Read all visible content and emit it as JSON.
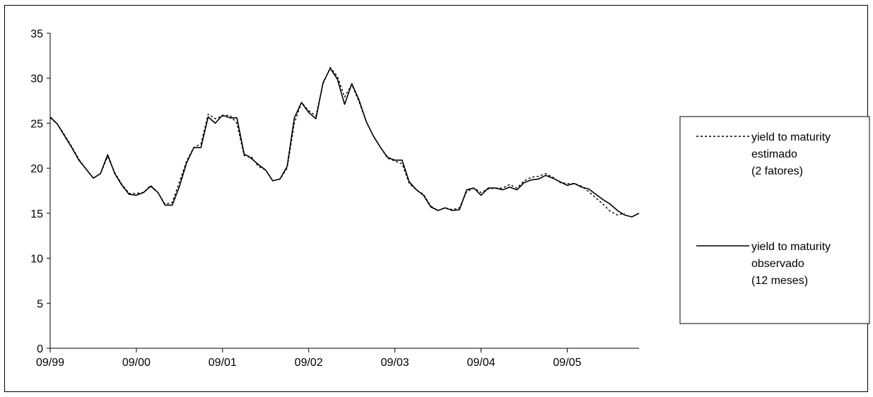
{
  "chart_data": {
    "type": "line",
    "title": "",
    "xlabel": "",
    "ylabel": "",
    "ylim": [
      0,
      35
    ],
    "yticks": [
      0,
      5,
      10,
      15,
      20,
      25,
      30,
      35
    ],
    "xticks": [
      "09/99",
      "09/00",
      "09/01",
      "09/02",
      "09/03",
      "09/04",
      "09/05"
    ],
    "x_start": "09/99",
    "grid": false,
    "legend_position": "right",
    "series": [
      {
        "name": "yield to maturity estimado (2 fatores)",
        "legend_lines": [
          "yield to maturity",
          "estimado",
          "(2 fatores)"
        ],
        "style": "dotted",
        "color": "#000000",
        "values": [
          25.6,
          24.9,
          23.7,
          22.4,
          21.0,
          19.9,
          18.9,
          19.4,
          21.3,
          19.5,
          18.2,
          17.2,
          17.2,
          17.3,
          18.1,
          17.3,
          16.0,
          16.2,
          18.5,
          20.8,
          22.3,
          22.7,
          26.0,
          25.5,
          25.8,
          25.9,
          25.0,
          21.4,
          21.3,
          20.2,
          19.8,
          18.6,
          18.8,
          20.0,
          25.0,
          27.3,
          26.4,
          25.8,
          29.4,
          31.2,
          30.2,
          27.9,
          29.3,
          27.4,
          25.2,
          23.6,
          22.3,
          21.1,
          20.8,
          20.5,
          18.3,
          17.6,
          17.1,
          15.8,
          15.3,
          15.6,
          15.4,
          15.6,
          17.4,
          17.8,
          17.3,
          17.7,
          17.8,
          17.8,
          18.2,
          17.8,
          18.6,
          19.0,
          19.1,
          19.4,
          19.0,
          18.4,
          18.3,
          18.3,
          18.0,
          17.4,
          16.7,
          16.0,
          15.2,
          14.8,
          15.0
        ]
      },
      {
        "name": "yield to maturity observado (12 meses)",
        "legend_lines": [
          "yield to maturity",
          "observado",
          "(12 meses)"
        ],
        "style": "solid",
        "color": "#000000",
        "values": [
          25.7,
          24.9,
          23.6,
          22.3,
          20.9,
          19.9,
          18.9,
          19.4,
          21.5,
          19.4,
          18.1,
          17.1,
          17.0,
          17.3,
          18.0,
          17.3,
          15.9,
          15.9,
          18.0,
          20.6,
          22.3,
          22.3,
          25.7,
          25.0,
          25.9,
          25.6,
          25.6,
          21.6,
          21.1,
          20.4,
          19.8,
          18.6,
          18.8,
          20.2,
          25.6,
          27.3,
          26.2,
          25.5,
          29.5,
          31.1,
          29.9,
          27.1,
          29.4,
          27.6,
          25.2,
          23.6,
          22.3,
          21.2,
          20.9,
          20.9,
          18.5,
          17.6,
          17.0,
          15.7,
          15.3,
          15.6,
          15.3,
          15.4,
          17.6,
          17.8,
          17.0,
          17.8,
          17.8,
          17.6,
          17.9,
          17.6,
          18.4,
          18.7,
          18.8,
          19.2,
          18.9,
          18.5,
          18.1,
          18.3,
          17.9,
          17.7,
          17.1,
          16.5,
          16.0,
          15.3,
          14.8,
          14.6,
          15.0
        ]
      }
    ]
  }
}
